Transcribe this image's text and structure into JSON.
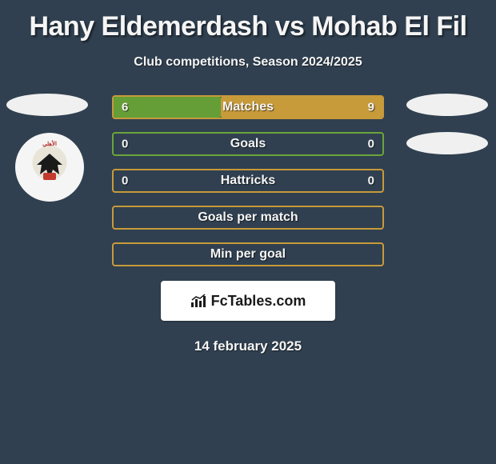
{
  "title": "Hany Eldemerdash vs Mohab El Fil",
  "subtitle": "Club competitions, Season 2024/2025",
  "date": "14 february 2025",
  "branding": {
    "text": "FcTables.com"
  },
  "colors": {
    "background": "#304050",
    "left_fill": "#659e36",
    "right_fill": "#c79a3a",
    "border_green": "#6aa53a",
    "border_gold": "#c79a3a",
    "text": "#f5f5f5"
  },
  "crest": {
    "top_text": "الأهلي",
    "bottom_text": "1907",
    "eagle_color": "#1a1a1a",
    "red": "#c23a2e",
    "bg": "#f5f5f5"
  },
  "bars": [
    {
      "label": "Matches",
      "left_value": "6",
      "right_value": "9",
      "left_pct": 40,
      "right_pct": 60,
      "border_color": "#c79a3a",
      "left_fill": "#659e36",
      "right_fill": "#c79a3a",
      "show_values": true
    },
    {
      "label": "Goals",
      "left_value": "0",
      "right_value": "0",
      "left_pct": 0,
      "right_pct": 0,
      "border_color": "#6aa53a",
      "left_fill": "#659e36",
      "right_fill": "#c79a3a",
      "show_values": true
    },
    {
      "label": "Hattricks",
      "left_value": "0",
      "right_value": "0",
      "left_pct": 0,
      "right_pct": 0,
      "border_color": "#c79a3a",
      "left_fill": "#659e36",
      "right_fill": "#c79a3a",
      "show_values": true
    },
    {
      "label": "Goals per match",
      "left_value": "",
      "right_value": "",
      "left_pct": 0,
      "right_pct": 0,
      "border_color": "#c79a3a",
      "left_fill": "#659e36",
      "right_fill": "#c79a3a",
      "show_values": false
    },
    {
      "label": "Min per goal",
      "left_value": "",
      "right_value": "",
      "left_pct": 0,
      "right_pct": 0,
      "border_color": "#c79a3a",
      "left_fill": "#659e36",
      "right_fill": "#c79a3a",
      "show_values": false
    }
  ]
}
